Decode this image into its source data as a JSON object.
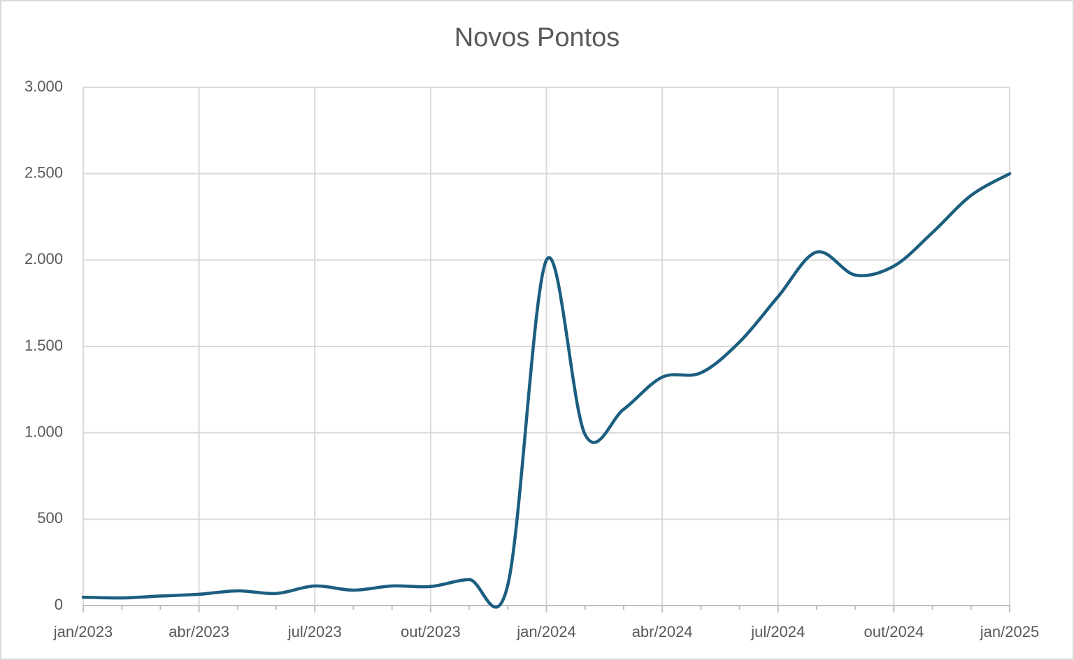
{
  "chart_data": {
    "type": "line",
    "title": "Novos Pontos",
    "categories": [
      "jan/2023",
      null,
      null,
      "abr/2023",
      null,
      null,
      "jul/2023",
      null,
      null,
      "out/2023",
      null,
      null,
      "jan/2024",
      null,
      null,
      "abr/2024",
      null,
      null,
      "jul/2024",
      null,
      null,
      "out/2024",
      null,
      null,
      "jan/2025"
    ],
    "values": [
      48,
      44,
      55,
      65,
      85,
      70,
      113,
      89,
      113,
      110,
      150,
      120,
      2000,
      990,
      1136,
      1322,
      1347,
      1525,
      1788,
      2046,
      1913,
      1965,
      2159,
      2374,
      2500
    ],
    "color": "#1b5e80",
    "ylim": [
      0,
      3000
    ],
    "yticks": [
      0,
      500,
      {
        "value": 1000,
        "label": "1.000"
      },
      {
        "value": 1500,
        "label": "1.500"
      },
      {
        "value": 2000,
        "label": "2.000"
      },
      {
        "value": 2500,
        "label": "2.500"
      },
      {
        "value": 3000,
        "label": "3.000"
      }
    ],
    "grid": true,
    "smooth": true
  }
}
